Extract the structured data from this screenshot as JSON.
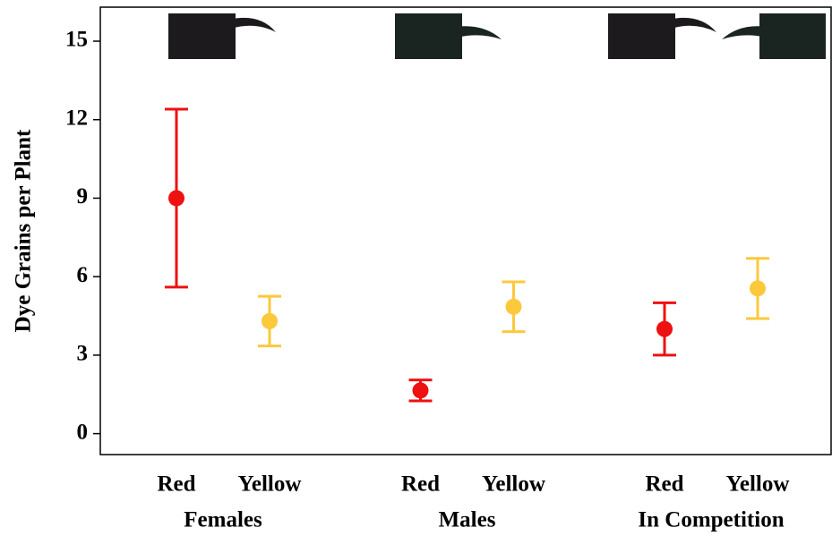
{
  "chart_data": {
    "type": "errorbar",
    "ylabel": "Dye Grains per Plant",
    "categories": [
      "Females",
      "Males",
      "In Competition"
    ],
    "series": [
      {
        "name": "Red",
        "color": "#ee1111",
        "values": [
          9.0,
          1.65,
          4.0
        ],
        "errors": [
          3.4,
          0.4,
          1.0
        ]
      },
      {
        "name": "Yellow",
        "color": "#fcc83c",
        "values": [
          4.3,
          4.85,
          5.55
        ],
        "errors": [
          0.95,
          0.95,
          1.15
        ]
      }
    ],
    "ylim": [
      -0.8,
      16.3
    ],
    "yticks": [
      0,
      3,
      6,
      9,
      12,
      15
    ]
  }
}
